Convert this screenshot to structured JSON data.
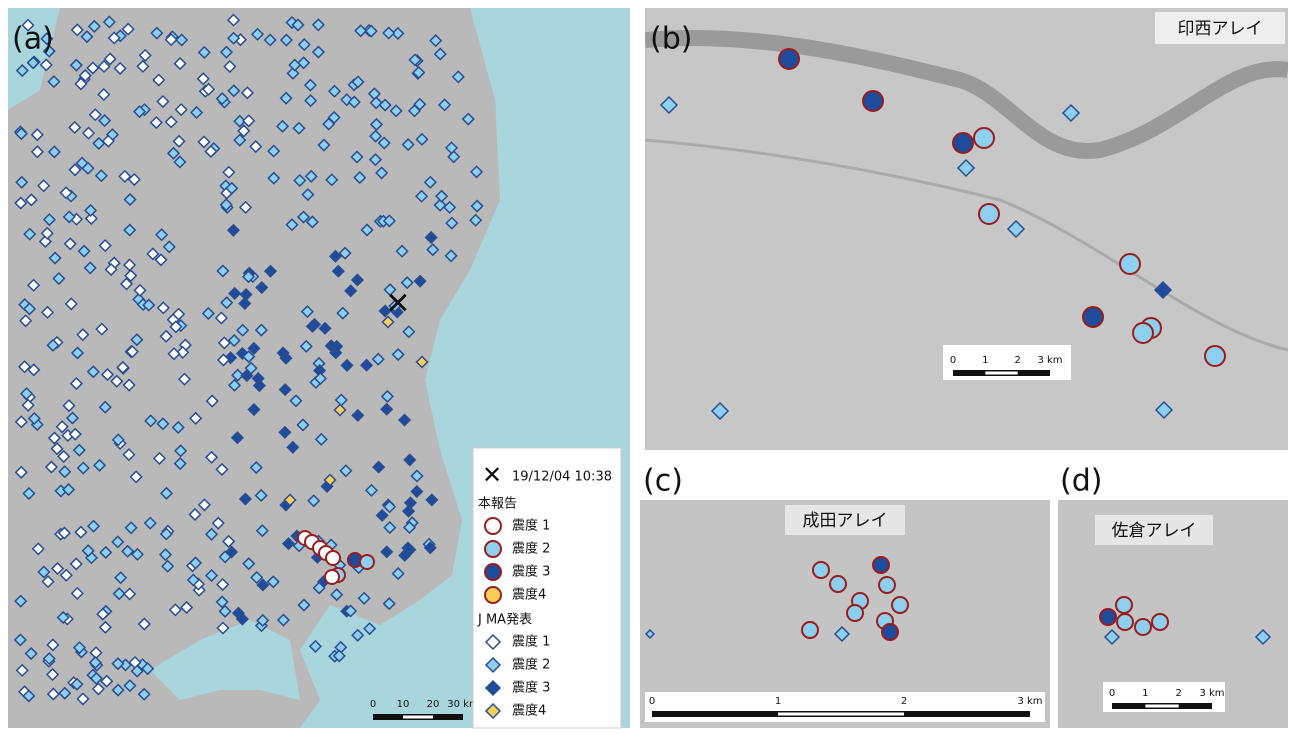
{
  "panel_a": {
    "label": "(a)",
    "scale_labels": [
      "0",
      "10",
      "20",
      "30 km"
    ]
  },
  "panel_b": {
    "label": "(b)",
    "array_name": "印西アレイ",
    "scale_labels": [
      "0",
      "1",
      "2",
      "3 km"
    ]
  },
  "panel_c": {
    "label": "(c)",
    "array_name": "成田アレイ",
    "scale_labels": [
      "0",
      "1",
      "2",
      "3 km"
    ]
  },
  "panel_d": {
    "label": "(d)",
    "array_name": "佐倉アレイ",
    "scale_labels": [
      "0",
      "1",
      "2",
      "3 km"
    ]
  },
  "legend": {
    "event_time": "19/12/04 10:38",
    "report_title": "本報告",
    "report_items": [
      "震度 1",
      "震度 2",
      "震度 3",
      "震度4"
    ],
    "jma_title": "J MA発表",
    "jma_items": [
      "震度 1",
      "震度 2",
      "震度 3",
      "震度4"
    ]
  }
}
